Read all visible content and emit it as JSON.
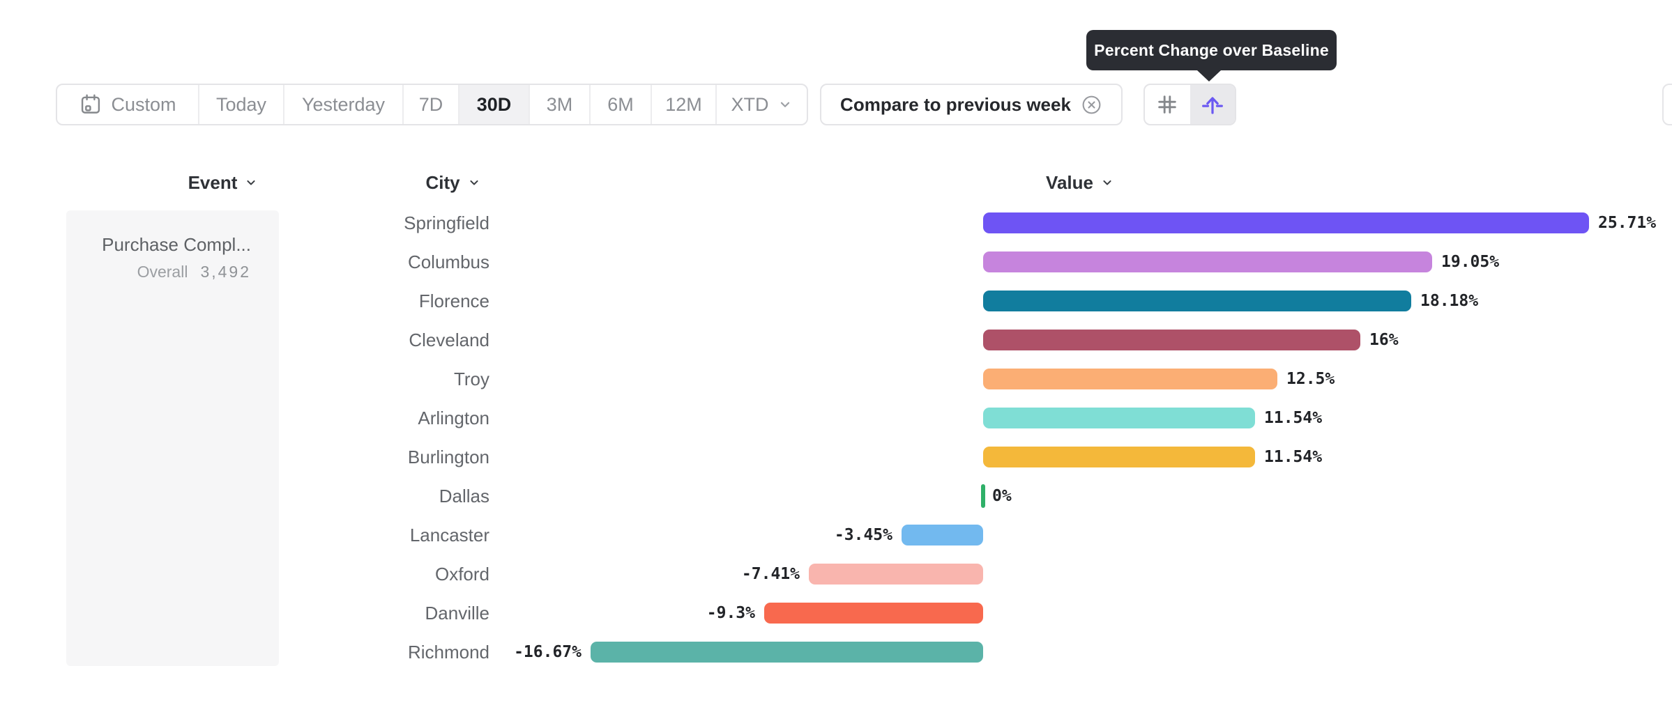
{
  "tooltip": {
    "text": "Percent Change over Baseline"
  },
  "toolbar": {
    "date_ranges": [
      {
        "label": "Custom",
        "icon": "calendar-icon"
      },
      {
        "label": "Today"
      },
      {
        "label": "Yesterday"
      },
      {
        "label": "7D"
      },
      {
        "label": "30D"
      },
      {
        "label": "3M"
      },
      {
        "label": "6M"
      },
      {
        "label": "12M"
      },
      {
        "label": "XTD",
        "chevron": true
      }
    ],
    "selected_range": "30D",
    "compare_chip": {
      "label": "Compare to previous week",
      "close_icon": "circle-x-icon"
    },
    "view_toggle": {
      "buttons": [
        {
          "icon": "grid-icon",
          "active": false
        },
        {
          "icon": "baseline-arrow-icon",
          "active": true
        }
      ],
      "active_icon_color": "#6b59f2"
    }
  },
  "columns": {
    "event": "Event",
    "city": "City",
    "value": "Value"
  },
  "event_panel": {
    "name": "Purchase Compl...",
    "overall_label": "Overall",
    "overall_value": "3,492"
  },
  "chart_data": {
    "type": "bar",
    "orientation": "horizontal",
    "value_unit": "percent",
    "title": "Percent Change over Baseline",
    "sort": "descending",
    "xlim": [
      -16.67,
      25.71
    ],
    "categories": [
      "Springfield",
      "Columbus",
      "Florence",
      "Cleveland",
      "Troy",
      "Arlington",
      "Burlington",
      "Dallas",
      "Lancaster",
      "Oxford",
      "Danville",
      "Richmond"
    ],
    "values": [
      25.71,
      19.05,
      18.18,
      16,
      12.5,
      11.54,
      11.54,
      0,
      -3.45,
      -7.41,
      -9.3,
      -16.67
    ],
    "value_labels": [
      "25.71%",
      "19.05%",
      "18.18%",
      "16%",
      "12.5%",
      "11.54%",
      "11.54%",
      "0%",
      "-3.45%",
      "-7.41%",
      "-9.3%",
      "-16.67%"
    ],
    "bar_colors": [
      "#6e54f4",
      "#c684dd",
      "#117d9e",
      "#ae5168",
      "#fbae74",
      "#7fded5",
      "#f4b83a",
      "#2fb068",
      "#72b9ef",
      "#f9b5ae",
      "#f8694e",
      "#5bb3a8"
    ],
    "zero_tick_color": "#2fb068"
  }
}
